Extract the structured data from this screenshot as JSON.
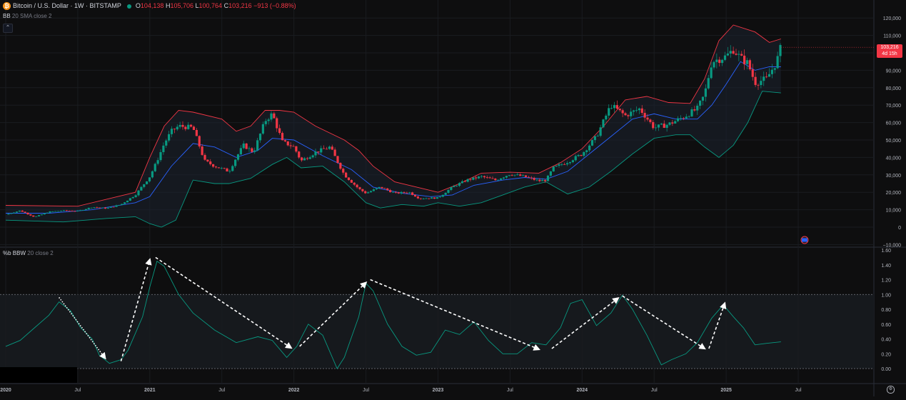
{
  "header": {
    "symbol_title": "Bitcoin / U.S. Dollar · 1W · BITSTAMP",
    "logo_glyph": "₿",
    "open_label": "O",
    "open_value": "104,138",
    "high_label": "H",
    "high_value": "105,706",
    "low_label": "L",
    "low_value": "100,764",
    "close_label": "C",
    "close_value": "103,216",
    "change": "−913 (−0.88%)"
  },
  "indicators": {
    "bb_name": "BB",
    "bb_params": "20 SMA close 2",
    "bbw_name": "%b BBW",
    "bbw_params": "20 close 2",
    "collapse_glyph": "⌃"
  },
  "price_tag": {
    "price": "103,216",
    "countdown": "4d 15h"
  },
  "colors": {
    "background": "#0e0e0f",
    "up": "#089981",
    "down": "#f23645",
    "upper_band": "#f23645",
    "basis": "#2962ff",
    "lower_band": "#089981",
    "bbw_line": "#089981"
  },
  "chart_data": [
    {
      "type": "candlestick",
      "title": "Bitcoin / U.S. Dollar · 1W · BITSTAMP",
      "indicator": "Bollinger Bands 20 SMA close 2",
      "y_ticks": [
        "120,000",
        "110,000",
        "100,000",
        "90,000",
        "80,000",
        "70,000",
        "60,000",
        "50,000",
        "40,000",
        "30,000",
        "20,000",
        "10,000",
        "0",
        "−10,000"
      ],
      "ylim": [
        -10000,
        120000
      ],
      "x_ticks": [
        "2020",
        "Jul",
        "2021",
        "Jul",
        "2022",
        "Jul",
        "2023",
        "Jul",
        "2024",
        "Jul",
        "2025",
        "Jul"
      ],
      "x_tick_years": [
        2020.0,
        2020.5,
        2021.0,
        2021.5,
        2022.0,
        2022.5,
        2023.0,
        2023.5,
        2024.0,
        2024.5,
        2025.0,
        2025.5
      ],
      "xlim": [
        2020.0,
        2025.65
      ],
      "close_path": [
        [
          2020.0,
          7200
        ],
        [
          2020.1,
          9500
        ],
        [
          2020.2,
          5800
        ],
        [
          2020.3,
          8800
        ],
        [
          2020.4,
          9500
        ],
        [
          2020.5,
          9200
        ],
        [
          2020.6,
          11500
        ],
        [
          2020.7,
          10800
        ],
        [
          2020.8,
          13000
        ],
        [
          2020.9,
          18500
        ],
        [
          2021.0,
          29000
        ],
        [
          2021.05,
          38000
        ],
        [
          2021.1,
          48000
        ],
        [
          2021.15,
          55000
        ],
        [
          2021.2,
          58000
        ],
        [
          2021.3,
          57000
        ],
        [
          2021.38,
          38000
        ],
        [
          2021.45,
          35000
        ],
        [
          2021.55,
          32000
        ],
        [
          2021.6,
          40000
        ],
        [
          2021.65,
          47000
        ],
        [
          2021.72,
          43000
        ],
        [
          2021.8,
          61000
        ],
        [
          2021.85,
          65000
        ],
        [
          2021.92,
          49000
        ],
        [
          2022.0,
          46000
        ],
        [
          2022.05,
          38000
        ],
        [
          2022.15,
          43000
        ],
        [
          2022.25,
          46000
        ],
        [
          2022.35,
          30000
        ],
        [
          2022.45,
          22000
        ],
        [
          2022.5,
          19500
        ],
        [
          2022.6,
          23000
        ],
        [
          2022.7,
          19500
        ],
        [
          2022.8,
          20000
        ],
        [
          2022.87,
          16500
        ],
        [
          2023.0,
          16800
        ],
        [
          2023.1,
          23000
        ],
        [
          2023.2,
          27000
        ],
        [
          2023.3,
          29000
        ],
        [
          2023.4,
          27000
        ],
        [
          2023.5,
          30500
        ],
        [
          2023.6,
          29000
        ],
        [
          2023.7,
          26500
        ],
        [
          2023.75,
          27000
        ],
        [
          2023.8,
          34000
        ],
        [
          2023.9,
          37500
        ],
        [
          2024.0,
          42000
        ],
        [
          2024.1,
          52000
        ],
        [
          2024.2,
          70000
        ],
        [
          2024.3,
          64000
        ],
        [
          2024.4,
          68000
        ],
        [
          2024.5,
          57000
        ],
        [
          2024.6,
          59000
        ],
        [
          2024.7,
          63000
        ],
        [
          2024.8,
          68000
        ],
        [
          2024.85,
          76000
        ],
        [
          2024.9,
          95000
        ],
        [
          2025.0,
          98000
        ],
        [
          2025.05,
          102000
        ],
        [
          2025.1,
          97000
        ],
        [
          2025.15,
          94000
        ],
        [
          2025.2,
          83000
        ],
        [
          2025.28,
          85000
        ],
        [
          2025.35,
          95000
        ],
        [
          2025.38,
          103216
        ]
      ],
      "upper_band": [
        [
          2020.0,
          12500
        ],
        [
          2020.5,
          12000
        ],
        [
          2020.9,
          20000
        ],
        [
          2021.0,
          40000
        ],
        [
          2021.1,
          58000
        ],
        [
          2021.2,
          67000
        ],
        [
          2021.3,
          66000
        ],
        [
          2021.5,
          62000
        ],
        [
          2021.6,
          55000
        ],
        [
          2021.7,
          58000
        ],
        [
          2021.8,
          67000
        ],
        [
          2021.9,
          67000
        ],
        [
          2022.0,
          66000
        ],
        [
          2022.15,
          58000
        ],
        [
          2022.35,
          50000
        ],
        [
          2022.45,
          44000
        ],
        [
          2022.55,
          35000
        ],
        [
          2022.7,
          26000
        ],
        [
          2022.9,
          22000
        ],
        [
          2023.0,
          20000
        ],
        [
          2023.15,
          25000
        ],
        [
          2023.3,
          31000
        ],
        [
          2023.5,
          31500
        ],
        [
          2023.7,
          31000
        ],
        [
          2023.85,
          37000
        ],
        [
          2024.0,
          45000
        ],
        [
          2024.15,
          58000
        ],
        [
          2024.3,
          73000
        ],
        [
          2024.45,
          75000
        ],
        [
          2024.6,
          71500
        ],
        [
          2024.75,
          71000
        ],
        [
          2024.85,
          85000
        ],
        [
          2024.95,
          107000
        ],
        [
          2025.05,
          116000
        ],
        [
          2025.2,
          112000
        ],
        [
          2025.3,
          106000
        ],
        [
          2025.38,
          108000
        ]
      ],
      "basis": [
        [
          2020.0,
          8000
        ],
        [
          2020.3,
          8000
        ],
        [
          2020.6,
          10000
        ],
        [
          2020.9,
          14000
        ],
        [
          2021.0,
          17500
        ],
        [
          2021.15,
          35000
        ],
        [
          2021.3,
          48000
        ],
        [
          2021.45,
          46000
        ],
        [
          2021.6,
          40000
        ],
        [
          2021.75,
          44000
        ],
        [
          2021.85,
          51000
        ],
        [
          2022.0,
          50000
        ],
        [
          2022.2,
          41000
        ],
        [
          2022.4,
          33000
        ],
        [
          2022.55,
          23000
        ],
        [
          2022.75,
          19500
        ],
        [
          2022.95,
          17500
        ],
        [
          2023.1,
          18500
        ],
        [
          2023.25,
          24000
        ],
        [
          2023.45,
          27000
        ],
        [
          2023.6,
          28500
        ],
        [
          2023.75,
          27500
        ],
        [
          2023.9,
          32000
        ],
        [
          2024.05,
          42000
        ],
        [
          2024.2,
          52000
        ],
        [
          2024.35,
          62000
        ],
        [
          2024.5,
          65000
        ],
        [
          2024.65,
          62000
        ],
        [
          2024.8,
          62000
        ],
        [
          2024.9,
          70000
        ],
        [
          2025.0,
          82000
        ],
        [
          2025.1,
          95000
        ],
        [
          2025.2,
          90000
        ],
        [
          2025.3,
          92000
        ],
        [
          2025.38,
          92000
        ]
      ],
      "lower_band": [
        [
          2020.0,
          4000
        ],
        [
          2020.4,
          3000
        ],
        [
          2020.7,
          5000
        ],
        [
          2020.9,
          6000
        ],
        [
          2021.0,
          2000
        ],
        [
          2021.08,
          0
        ],
        [
          2021.18,
          4000
        ],
        [
          2021.3,
          27000
        ],
        [
          2021.45,
          25000
        ],
        [
          2021.55,
          25000
        ],
        [
          2021.7,
          28000
        ],
        [
          2021.85,
          36000
        ],
        [
          2021.95,
          40000
        ],
        [
          2022.05,
          34000
        ],
        [
          2022.2,
          35000
        ],
        [
          2022.35,
          26000
        ],
        [
          2022.5,
          14000
        ],
        [
          2022.6,
          11000
        ],
        [
          2022.75,
          13000
        ],
        [
          2022.9,
          12000
        ],
        [
          2023.0,
          14000
        ],
        [
          2023.15,
          12000
        ],
        [
          2023.3,
          14000
        ],
        [
          2023.45,
          18500
        ],
        [
          2023.6,
          23000
        ],
        [
          2023.75,
          26000
        ],
        [
          2023.9,
          19000
        ],
        [
          2024.05,
          23000
        ],
        [
          2024.2,
          32000
        ],
        [
          2024.35,
          42000
        ],
        [
          2024.5,
          51000
        ],
        [
          2024.65,
          53000
        ],
        [
          2024.75,
          53000
        ],
        [
          2024.85,
          46000
        ],
        [
          2024.95,
          40000
        ],
        [
          2025.05,
          47000
        ],
        [
          2025.15,
          60000
        ],
        [
          2025.25,
          78000
        ],
        [
          2025.38,
          77000
        ]
      ]
    },
    {
      "type": "line",
      "title": "%b BBW 20 close 2",
      "y_ticks": [
        "1.60",
        "1.40",
        "1.20",
        "1.00",
        "0.80",
        "0.60",
        "0.40",
        "0.20",
        "0.00"
      ],
      "ylim": [
        0,
        1.6
      ],
      "reference_line": 1.0,
      "series": [
        {
          "values": [
            [
              2020.0,
              0.3
            ],
            [
              2020.1,
              0.38
            ],
            [
              2020.2,
              0.55
            ],
            [
              2020.3,
              0.72
            ],
            [
              2020.37,
              0.9
            ],
            [
              2020.45,
              0.78
            ],
            [
              2020.52,
              0.55
            ],
            [
              2020.6,
              0.4
            ],
            [
              2020.65,
              0.18
            ],
            [
              2020.72,
              0.07
            ],
            [
              2020.8,
              0.12
            ],
            [
              2020.85,
              0.25
            ],
            [
              2020.95,
              0.7
            ],
            [
              2021.0,
              1.1
            ],
            [
              2021.05,
              1.45
            ],
            [
              2021.1,
              1.38
            ],
            [
              2021.2,
              1.0
            ],
            [
              2021.3,
              0.75
            ],
            [
              2021.45,
              0.52
            ],
            [
              2021.6,
              0.35
            ],
            [
              2021.75,
              0.43
            ],
            [
              2021.85,
              0.38
            ],
            [
              2021.95,
              0.15
            ],
            [
              2022.02,
              0.3
            ],
            [
              2022.1,
              0.6
            ],
            [
              2022.2,
              0.45
            ],
            [
              2022.3,
              0.0
            ],
            [
              2022.35,
              0.15
            ],
            [
              2022.45,
              0.7
            ],
            [
              2022.5,
              1.15
            ],
            [
              2022.55,
              1.05
            ],
            [
              2022.65,
              0.6
            ],
            [
              2022.75,
              0.3
            ],
            [
              2022.85,
              0.18
            ],
            [
              2022.95,
              0.22
            ],
            [
              2023.05,
              0.52
            ],
            [
              2023.15,
              0.46
            ],
            [
              2023.25,
              0.63
            ],
            [
              2023.35,
              0.38
            ],
            [
              2023.45,
              0.2
            ],
            [
              2023.55,
              0.2
            ],
            [
              2023.65,
              0.35
            ],
            [
              2023.75,
              0.32
            ],
            [
              2023.85,
              0.55
            ],
            [
              2023.92,
              0.88
            ],
            [
              2024.0,
              0.93
            ],
            [
              2024.1,
              0.58
            ],
            [
              2024.2,
              0.75
            ],
            [
              2024.28,
              0.99
            ],
            [
              2024.35,
              0.8
            ],
            [
              2024.45,
              0.45
            ],
            [
              2024.55,
              0.05
            ],
            [
              2024.62,
              0.12
            ],
            [
              2024.72,
              0.2
            ],
            [
              2024.8,
              0.35
            ],
            [
              2024.9,
              0.68
            ],
            [
              2024.98,
              0.86
            ],
            [
              2025.05,
              0.7
            ],
            [
              2025.12,
              0.55
            ],
            [
              2025.2,
              0.32
            ],
            [
              2025.28,
              0.34
            ],
            [
              2025.38,
              0.36
            ]
          ]
        }
      ],
      "annotations": "white dashed arrows tracing band-width swings"
    }
  ]
}
